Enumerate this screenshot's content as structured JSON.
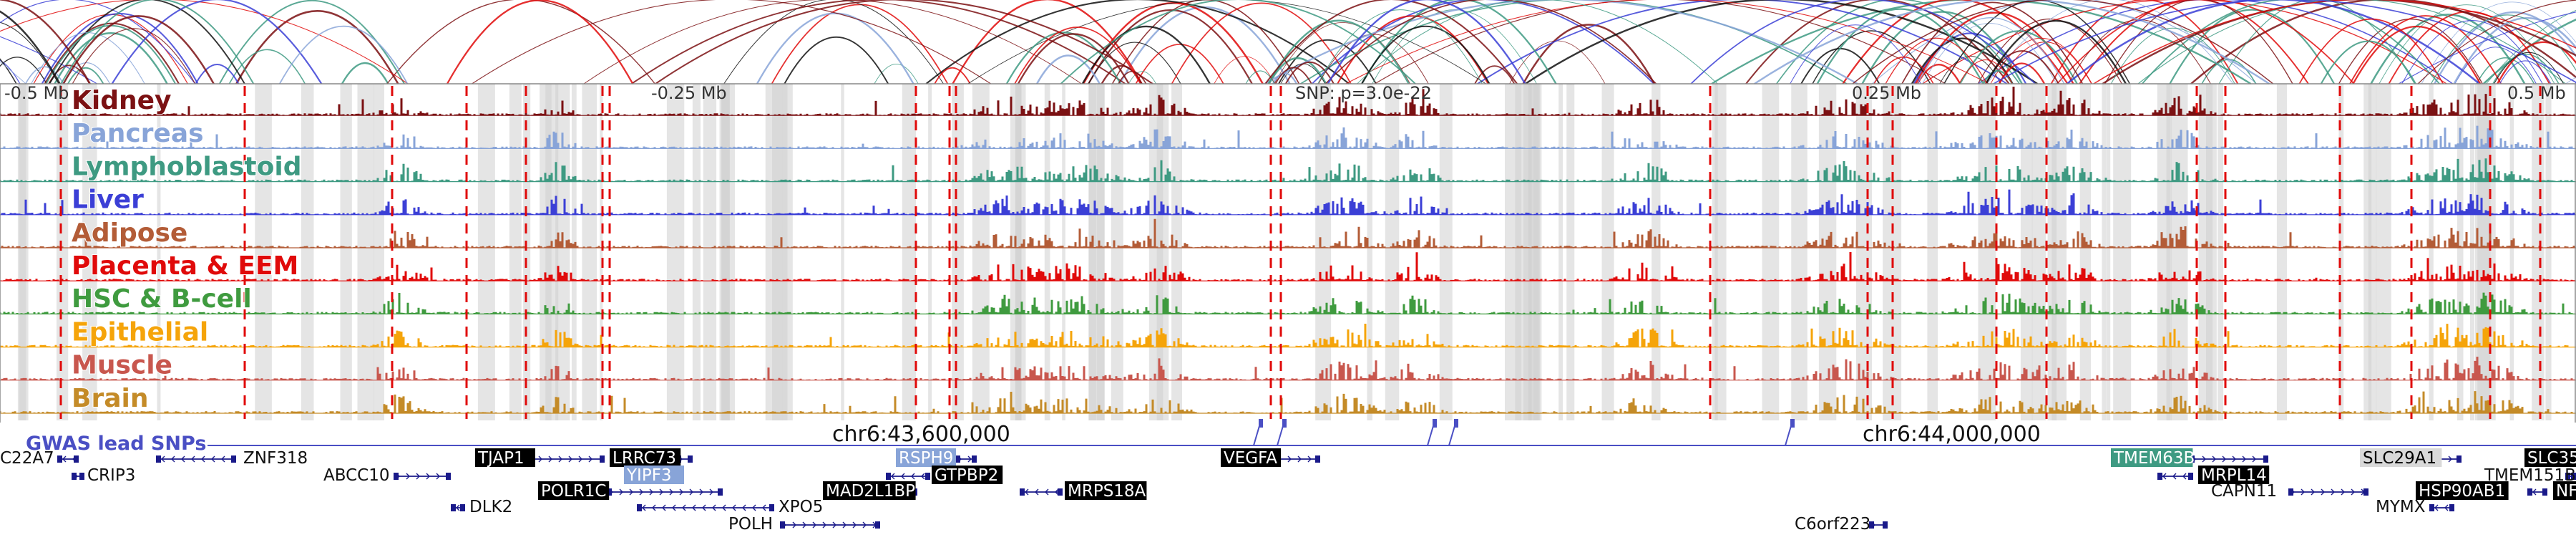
{
  "ruler": {
    "left_label": "-0.5 Mb",
    "mid_left_label": "-0.25 Mb",
    "center_label": "SNP: p=3.0e-22",
    "mid_right_label": "0.25 Mb",
    "right_label": "0.5 Mb"
  },
  "tracks": [
    {
      "label": "Kidney",
      "color": "#7b1113"
    },
    {
      "label": "Pancreas",
      "color": "#88a4d8"
    },
    {
      "label": "Lymphoblastoid",
      "color": "#3e9a82"
    },
    {
      "label": "Liver",
      "color": "#3b3fd6"
    },
    {
      "label": "Adipose",
      "color": "#b35c37"
    },
    {
      "label": "Placenta & EEM",
      "color": "#e00a0a"
    },
    {
      "label": "HSC & B-cell",
      "color": "#3f9b3f"
    },
    {
      "label": "Epithelial",
      "color": "#f5a40a"
    },
    {
      "label": "Muscle",
      "color": "#c8574e"
    },
    {
      "label": "Brain",
      "color": "#c48b28"
    }
  ],
  "gwas": {
    "label": "GWAS lead SNPs",
    "color": "#4a4fc4"
  },
  "coordinates": {
    "left": "chr6:43,600,000",
    "right": "chr6:44,000,000"
  },
  "genes": [
    {
      "name": "C22A7",
      "style": "plain"
    },
    {
      "name": "CRIP3",
      "style": "plain"
    },
    {
      "name": "ZNF318",
      "style": "plain"
    },
    {
      "name": "ABCC10",
      "style": "plain"
    },
    {
      "name": "DLK2",
      "style": "plain"
    },
    {
      "name": "TJAP1",
      "style": "black"
    },
    {
      "name": "POLR1C",
      "style": "black"
    },
    {
      "name": "LRRC73",
      "style": "black"
    },
    {
      "name": "YIPF3",
      "style": "blue"
    },
    {
      "name": "XPO5",
      "style": "plain"
    },
    {
      "name": "POLH",
      "style": "plain"
    },
    {
      "name": "MAD2L1BP",
      "style": "black"
    },
    {
      "name": "RSPH9",
      "style": "blue"
    },
    {
      "name": "GTPBP2",
      "style": "black"
    },
    {
      "name": "MRPS18A",
      "style": "black"
    },
    {
      "name": "VEGFA",
      "style": "black"
    },
    {
      "name": "C6orf223",
      "style": "plain"
    },
    {
      "name": "TMEM63B",
      "style": "teal"
    },
    {
      "name": "MRPL14",
      "style": "black"
    },
    {
      "name": "CAPN11",
      "style": "plain"
    },
    {
      "name": "SLC29A1",
      "style": "grey"
    },
    {
      "name": "MYMX",
      "style": "plain"
    },
    {
      "name": "HSP90AB1",
      "style": "black"
    },
    {
      "name": "SLC35",
      "style": "black"
    },
    {
      "name": "TMEM151B",
      "style": "plain"
    },
    {
      "name": "NF",
      "style": "black"
    }
  ]
}
